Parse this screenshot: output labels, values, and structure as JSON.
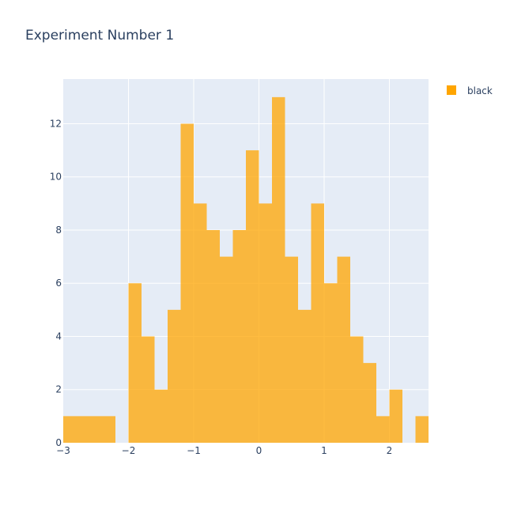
{
  "chart_data": {
    "type": "bar",
    "title": "Experiment Number 1",
    "xlabel": "",
    "ylabel": "",
    "x_tick_labels": [
      "−3",
      "−2",
      "−1",
      "0",
      "1",
      "2"
    ],
    "y_tick_labels": [
      "0",
      "2",
      "4",
      "6",
      "8",
      "10",
      "12"
    ],
    "x_ticks": [
      -3,
      -2,
      -1,
      0,
      1,
      2
    ],
    "y_ticks": [
      0,
      2,
      4,
      6,
      8,
      10,
      12
    ],
    "xlim": [
      -3,
      2.6
    ],
    "ylim": [
      0,
      13.68
    ],
    "bin_width": 0.2,
    "bin_starts": [
      -3.0,
      -2.8,
      -2.6,
      -2.4,
      -2.2,
      -2.0,
      -1.8,
      -1.6,
      -1.4,
      -1.2,
      -1.0,
      -0.8,
      -0.6,
      -0.4,
      -0.2,
      0.0,
      0.2,
      0.4,
      0.6,
      0.8,
      1.0,
      1.2,
      1.4,
      1.6,
      1.8,
      2.0,
      2.2,
      2.4
    ],
    "counts": [
      1,
      1,
      1,
      1,
      0,
      6,
      4,
      2,
      5,
      12,
      9,
      8,
      7,
      8,
      11,
      9,
      13,
      7,
      5,
      9,
      6,
      7,
      4,
      3,
      1,
      2,
      0,
      1
    ],
    "series": [
      {
        "name": "black",
        "color": "#FFA500"
      }
    ],
    "plot_background": "#E5ECF6",
    "gridline_color": "#ffffff",
    "bar_opacity": 0.75,
    "grid": true,
    "legend_position": "top-right"
  }
}
